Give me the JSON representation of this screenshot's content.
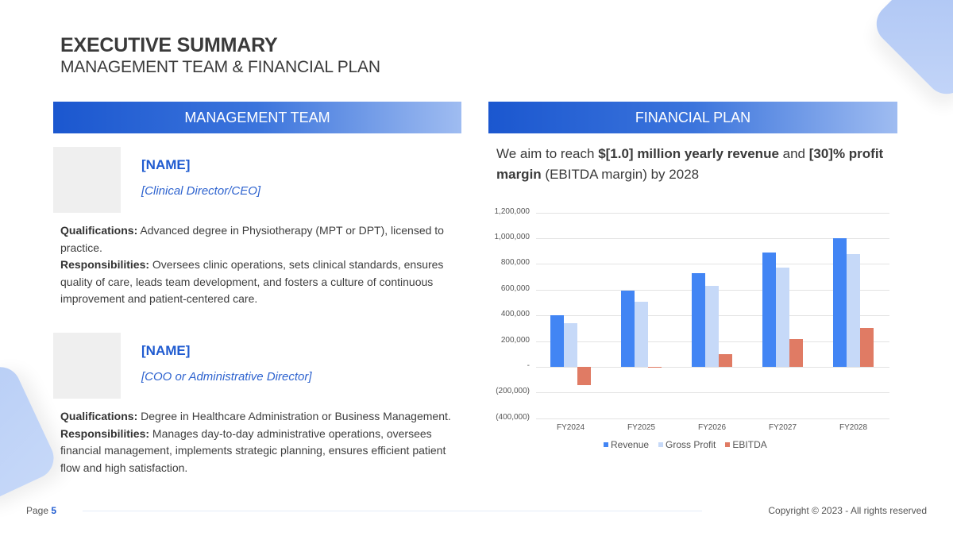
{
  "header": {
    "title": "EXECUTIVE SUMMARY",
    "subtitle": "MANAGEMENT TEAM & FINANCIAL PLAN"
  },
  "management": {
    "section_label": "MANAGEMENT TEAM",
    "members": [
      {
        "name": "[NAME]",
        "role": "[Clinical Director/CEO]",
        "qualifications_label": "Qualifications:",
        "qualifications": "Advanced degree in Physiotherapy (MPT or DPT), licensed to practice.",
        "responsibilities_label": "Responsibilities:",
        "responsibilities": "Oversees clinic operations, sets clinical standards, ensures quality of care, leads team development, and fosters a culture of continuous improvement and patient-centered care."
      },
      {
        "name": "[NAME]",
        "role": "[COO or Administrative Director]",
        "qualifications_label": "Qualifications:",
        "qualifications": "Degree in Healthcare Administration or Business Management.",
        "responsibilities_label": "Responsibilities:",
        "responsibilities": "Manages day-to-day administrative operations, oversees financial management, implements strategic planning, ensures efficient patient flow and high satisfaction."
      }
    ]
  },
  "financial": {
    "section_label": "FINANCIAL PLAN",
    "statement": {
      "part1": "We aim to reach ",
      "bold1": "$[1.0] million yearly revenue",
      "part2": " and ",
      "bold2": "[30]% profit margin",
      "part3": " (EBITDA margin) by 2028"
    }
  },
  "chart_data": {
    "type": "bar",
    "title": "",
    "xlabel": "",
    "ylabel": "",
    "categories": [
      "FY2024",
      "FY2025",
      "FY2026",
      "FY2027",
      "FY2028"
    ],
    "series": [
      {
        "name": "Revenue",
        "color": "#4285f4",
        "values": [
          400000,
          590000,
          730000,
          890000,
          1000000
        ]
      },
      {
        "name": "Gross Profit",
        "color": "#c6d9f8",
        "values": [
          340000,
          505000,
          630000,
          770000,
          875000
        ]
      },
      {
        "name": "EBITDA",
        "color": "#e07b64",
        "values": [
          -145000,
          2000,
          100000,
          215000,
          305000
        ]
      }
    ],
    "ylim": [
      -400000,
      1200000
    ],
    "yticks": [
      "1,200,000",
      "1,000,000",
      "800,000",
      "600,000",
      "400,000",
      "200,000",
      "-",
      "(200,000)",
      "(400,000)"
    ],
    "ytick_values": [
      1200000,
      1000000,
      800000,
      600000,
      400000,
      200000,
      0,
      -200000,
      -400000
    ],
    "grid": true,
    "legend_position": "bottom"
  },
  "footer": {
    "page_label": "Page",
    "page_number": "5",
    "copyright": "Copyright © 2023 - All rights reserved"
  }
}
